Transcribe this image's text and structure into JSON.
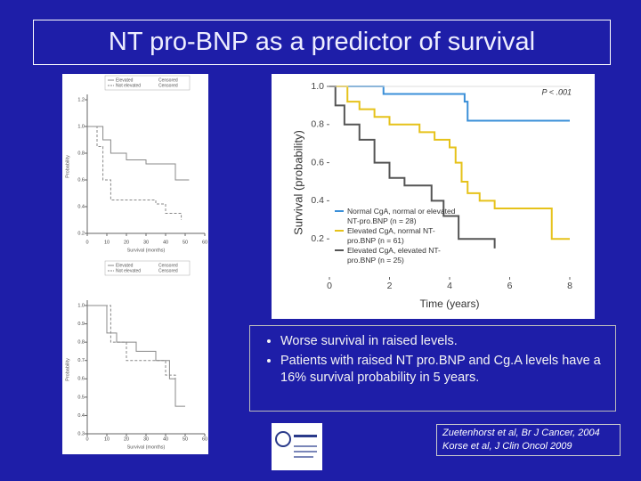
{
  "title": "NT pro-BNP as a predictor of survival",
  "bullets": [
    "Worse survival in raised levels.",
    "Patients with raised NT pro.BNP and Cg.A levels have a 16% survival probability in 5 years."
  ],
  "citations": [
    "Zuetenhorst et al, Br J Cancer, 2004",
    "Korse et al, J Clin Oncol 2009"
  ],
  "main_chart": {
    "type": "line",
    "annotation": "P < .001",
    "xlabel": "Time (years)",
    "ylabel": "Survival (probability)",
    "xlim": [
      0,
      8
    ],
    "ylim": [
      0,
      1
    ],
    "xticks": [
      0,
      2,
      4,
      6,
      8
    ],
    "yticks": [
      {
        "value": 1,
        "label": "1.0"
      },
      0.8,
      0.6,
      0.4,
      0.2
    ],
    "series": [
      {
        "name": "Normal CgA, normal or elevated NT-pro.BNP (n = 28)",
        "color": "#3a8fd8",
        "x": [
          0,
          1.8,
          4.5,
          4.6,
          8
        ],
        "y": [
          1,
          0.96,
          0.92,
          0.82,
          0.82
        ]
      },
      {
        "name": "Elevated CgA, normal NT-pro.BNP (n = 61)",
        "color": "#e6c21a",
        "x": [
          0,
          0.6,
          1,
          1.5,
          2,
          3,
          3.5,
          4,
          4.2,
          4.4,
          4.6,
          5,
          5.5,
          7.4,
          8
        ],
        "y": [
          1,
          0.92,
          0.88,
          0.84,
          0.8,
          0.76,
          0.72,
          0.68,
          0.6,
          0.5,
          0.44,
          0.4,
          0.36,
          0.2,
          0.2
        ]
      },
      {
        "name": "Elevated CgA, elevated NT-pro.BNP (n = 25)",
        "color": "#555555",
        "x": [
          0,
          0.2,
          0.5,
          1,
          1.5,
          2,
          2.5,
          3.4,
          3.8,
          4.3,
          5.5
        ],
        "y": [
          1,
          0.9,
          0.8,
          0.72,
          0.6,
          0.52,
          0.48,
          0.4,
          0.32,
          0.2,
          0.15
        ]
      }
    ]
  },
  "left_charts": [
    {
      "type": "line",
      "xlabel": "Survival (months)",
      "ylabel": "Probability",
      "censor_labels": [
        "Censored",
        "Censored"
      ],
      "xlim": [
        0,
        60
      ],
      "ylim": [
        0.2,
        1.2
      ],
      "xticks": [
        0,
        10,
        20,
        30,
        40,
        50,
        60
      ],
      "yticks": [
        1.2,
        {
          "value": 1,
          "label": "1.0"
        },
        0.8,
        0.6,
        0.4,
        0.2
      ],
      "series": [
        {
          "name": "Elevated",
          "color": "#888888",
          "dash": false,
          "x": [
            0,
            8,
            12,
            20,
            30,
            45,
            52
          ],
          "y": [
            1,
            0.9,
            0.8,
            0.75,
            0.72,
            0.6,
            0.6
          ]
        },
        {
          "name": "Not elevated",
          "color": "#888888",
          "dash": true,
          "x": [
            0,
            5,
            8,
            12,
            20,
            35,
            40,
            48
          ],
          "y": [
            1,
            0.85,
            0.6,
            0.45,
            0.45,
            0.42,
            0.35,
            0.3
          ]
        }
      ]
    },
    {
      "type": "line",
      "xlabel": "Survival (months)",
      "ylabel": "Probability",
      "censor_labels": [
        "Censored",
        "Censored"
      ],
      "xlim": [
        0,
        60
      ],
      "ylim": [
        0.3,
        1
      ],
      "xticks": [
        0,
        10,
        20,
        30,
        40,
        50,
        60
      ],
      "yticks": [
        {
          "value": 1,
          "label": "1.0"
        },
        0.9,
        0.8,
        0.7,
        0.6,
        0.5,
        0.4,
        0.3
      ],
      "series": [
        {
          "name": "Elevated",
          "color": "#888888",
          "dash": false,
          "x": [
            0,
            10,
            15,
            25,
            35,
            42,
            45,
            50
          ],
          "y": [
            1,
            0.85,
            0.8,
            0.75,
            0.7,
            0.6,
            0.45,
            0.45
          ]
        },
        {
          "name": "Not elevated",
          "color": "#888888",
          "dash": true,
          "x": [
            0,
            12,
            20,
            40,
            45
          ],
          "y": [
            1,
            0.8,
            0.7,
            0.62,
            0.6
          ]
        }
      ]
    }
  ]
}
